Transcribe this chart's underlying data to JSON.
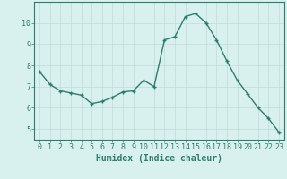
{
  "x": [
    0,
    1,
    2,
    3,
    4,
    5,
    6,
    7,
    8,
    9,
    10,
    11,
    12,
    13,
    14,
    15,
    16,
    17,
    18,
    19,
    20,
    21,
    22,
    23
  ],
  "y": [
    7.7,
    7.1,
    6.8,
    6.7,
    6.6,
    6.2,
    6.3,
    6.5,
    6.75,
    6.8,
    7.3,
    7.0,
    9.2,
    9.35,
    10.3,
    10.45,
    10.0,
    9.2,
    8.2,
    7.3,
    6.65,
    6.0,
    5.5,
    4.85
  ],
  "line_color": "#2d7d6e",
  "marker": "+",
  "marker_size": 3.5,
  "bg_color": "#d8f0ee",
  "grid_color": "#c0dcd8",
  "grid_color_minor": "#e0f0ee",
  "xlabel": "Humidex (Indice chaleur)",
  "ylim": [
    4.5,
    11.0
  ],
  "xlim": [
    -0.5,
    23.5
  ],
  "yticks": [
    5,
    6,
    7,
    8,
    9,
    10
  ],
  "xticks": [
    0,
    1,
    2,
    3,
    4,
    5,
    6,
    7,
    8,
    9,
    10,
    11,
    12,
    13,
    14,
    15,
    16,
    17,
    18,
    19,
    20,
    21,
    22,
    23
  ],
  "xtick_labels": [
    "0",
    "1",
    "2",
    "3",
    "4",
    "5",
    "6",
    "7",
    "8",
    "9",
    "10",
    "11",
    "12",
    "13",
    "14",
    "15",
    "16",
    "17",
    "18",
    "19",
    "20",
    "21",
    "22",
    "23"
  ],
  "axis_color": "#2d7d6e",
  "tick_color": "#2d7d6e",
  "label_color": "#2d7d6e",
  "font_size_label": 7,
  "font_size_tick": 6,
  "line_width": 1.0
}
